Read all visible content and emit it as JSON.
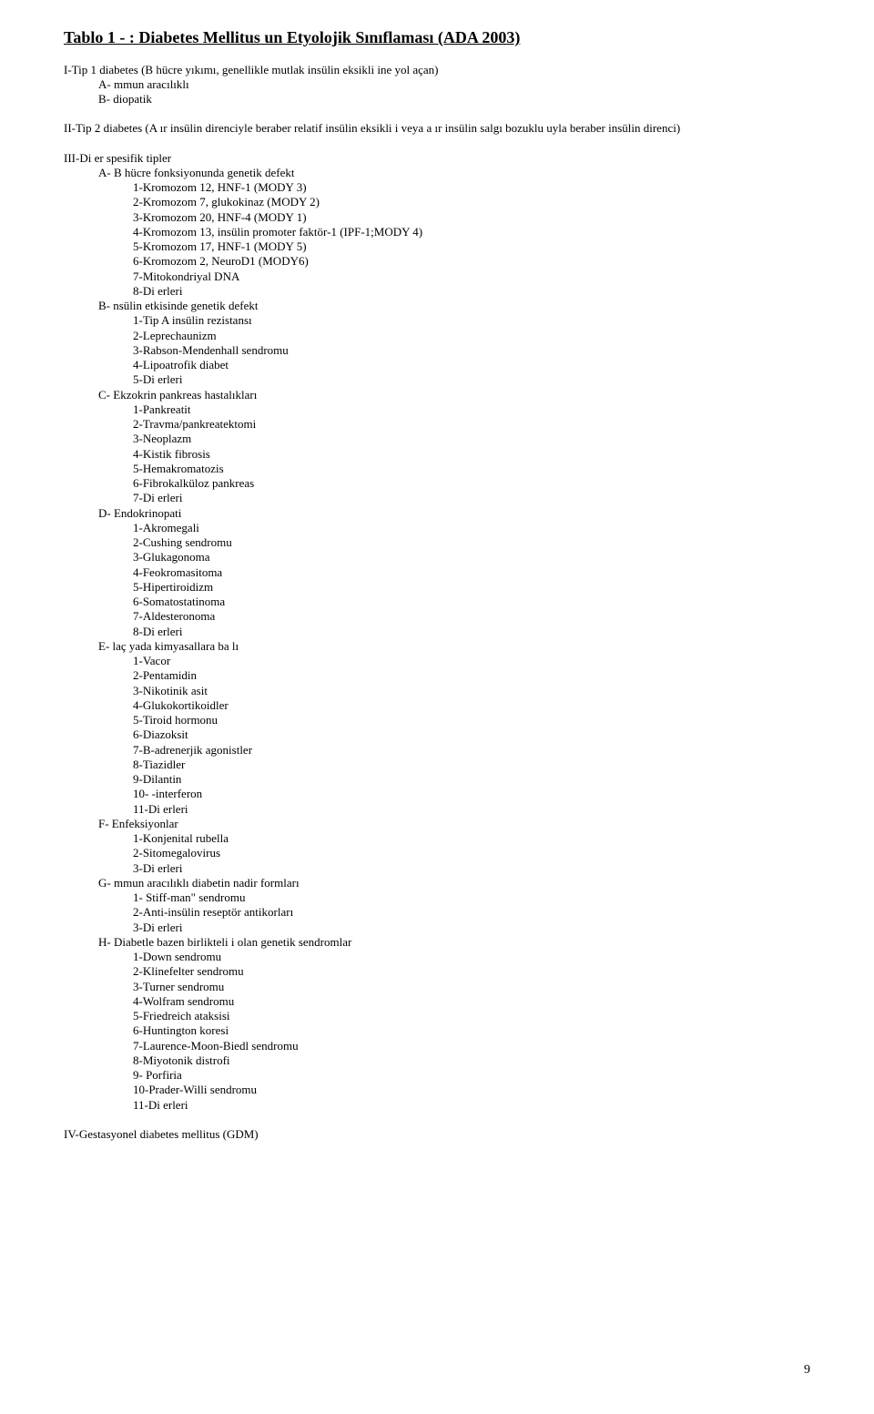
{
  "title": "Tablo 1 - : Diabetes Mellitus un Etyolojik Sınıflaması (ADA 2003)",
  "type1_head": "I-Tip 1 diabetes (B hücre yıkımı, genellikle mutlak insülin eksikli ine yol açan)",
  "type1_a": "A- mmun aracılıklı",
  "type1_b": "B- diopatik",
  "type2_head": "II-Tip 2 diabetes (A ır insülin direnciyle beraber relatif insülin eksikli i veya a ır insülin salgı bozuklu uyla beraber insülin direnci)",
  "type3_head": "III-Di er spesifik tipler",
  "t3a_head": "A- B hücre fonksiyonunda genetik defekt",
  "t3a": [
    "1-Kromozom 12, HNF-1 (MODY 3)",
    "2-Kromozom 7, glukokinaz (MODY 2)",
    "3-Kromozom 20, HNF-4 (MODY 1)",
    "4-Kromozom 13, insülin promoter faktör-1 (IPF-1;MODY 4)",
    "5-Kromozom 17, HNF-1 (MODY 5)",
    "6-Kromozom 2, NeuroD1 (MODY6)",
    "7-Mitokondriyal DNA",
    "8-Di erleri"
  ],
  "t3b_head": "B- nsülin etkisinde genetik defekt",
  "t3b": [
    "1-Tip A insülin rezistansı",
    "2-Leprechaunizm",
    "3-Rabson-Mendenhall sendromu",
    "4-Lipoatrofik diabet",
    "5-Di erleri"
  ],
  "t3c_head": "C- Ekzokrin pankreas hastalıkları",
  "t3c": [
    "1-Pankreatit",
    "2-Travma/pankreatektomi",
    "3-Neoplazm",
    "4-Kistik fibrosis",
    "5-Hemakromatozis",
    "6-Fibrokalküloz pankreas",
    "7-Di erleri"
  ],
  "t3d_head": "D- Endokrinopati",
  "t3d": [
    "1-Akromegali",
    "2-Cushing sendromu",
    "3-Glukagonoma",
    "4-Feokromasitoma",
    "5-Hipertiroidizm",
    "6-Somatostatinoma",
    "7-Aldesteronoma",
    "8-Di erleri"
  ],
  "t3e_head": "E- laç yada kimyasallara ba lı",
  "t3e": [
    "1-Vacor",
    "2-Pentamidin",
    "3-Nikotinik asit",
    "4-Glukokortikoidler",
    "5-Tiroid hormonu",
    "6-Diazoksit",
    "7-B-adrenerjik agonistler",
    "8-Tiazidler",
    "9-Dilantin",
    "10- -interferon",
    "11-Di erleri"
  ],
  "t3f_head": "F- Enfeksiyonlar",
  "t3f": [
    "1-Konjenital rubella",
    "2-Sitomegalovirus",
    "3-Di erleri"
  ],
  "t3g_head": "G- mmun aracılıklı diabetin nadir formları",
  "t3g": [
    "1- Stiff-man\" sendromu",
    "2-Anti-insülin reseptör antikorları",
    "3-Di erleri"
  ],
  "t3h_head": "H- Diabetle bazen birlikteli i olan genetik sendromlar",
  "t3h": [
    "1-Down sendromu",
    "2-Klinefelter sendromu",
    "3-Turner sendromu",
    "4-Wolfram sendromu",
    "5-Friedreich ataksisi",
    "6-Huntington koresi",
    "7-Laurence-Moon-Biedl sendromu",
    "8-Miyotonik distrofi",
    "9- Porfiria",
    "10-Prader-Willi sendromu",
    "11-Di erleri"
  ],
  "type4_head": "IV-Gestasyonel diabetes mellitus (GDM)",
  "page_number": "9"
}
